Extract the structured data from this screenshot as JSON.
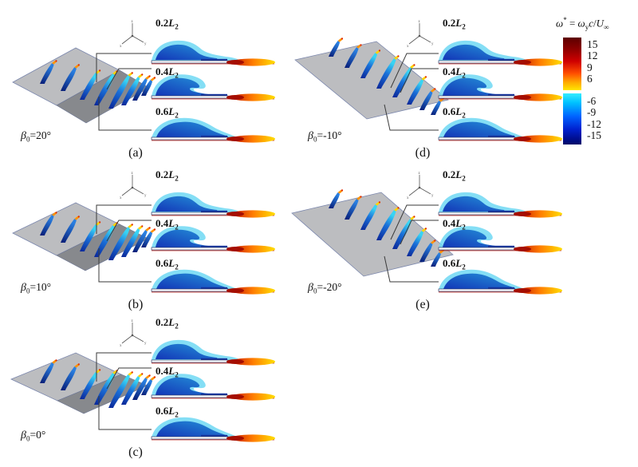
{
  "figure": {
    "background": "#ffffff",
    "panels": [
      {
        "id": "a",
        "letter": "(a)",
        "beta": {
          "sym": "β",
          "sub": "0",
          "val": "=20°"
        },
        "slices": [
          {
            "val": "0.2",
            "sym": "L",
            "sub": "2"
          },
          {
            "val": "0.4",
            "sym": "L",
            "sub": "2"
          },
          {
            "val": "0.6",
            "sym": "L",
            "sub": "2"
          }
        ]
      },
      {
        "id": "b",
        "letter": "(b)",
        "beta": {
          "sym": "β",
          "sub": "0",
          "val": "=10°"
        },
        "slices": [
          {
            "val": "0.2",
            "sym": "L",
            "sub": "2"
          },
          {
            "val": "0.4",
            "sym": "L",
            "sub": "2"
          },
          {
            "val": "0.6",
            "sym": "L",
            "sub": "2"
          }
        ]
      },
      {
        "id": "c",
        "letter": "(c)",
        "beta": {
          "sym": "β",
          "sub": "0",
          "val": "=0°"
        },
        "slices": [
          {
            "val": "0.2",
            "sym": "L",
            "sub": "2"
          },
          {
            "val": "0.4",
            "sym": "L",
            "sub": "2"
          },
          {
            "val": "0.6",
            "sym": "L",
            "sub": "2"
          }
        ]
      },
      {
        "id": "d",
        "letter": "(d)",
        "beta": {
          "sym": "β",
          "sub": "0",
          "val": "=-10°"
        },
        "slices": [
          {
            "val": "0.2",
            "sym": "L",
            "sub": "2"
          },
          {
            "val": "0.4",
            "sym": "L",
            "sub": "2"
          },
          {
            "val": "0.6",
            "sym": "L",
            "sub": "2"
          }
        ]
      },
      {
        "id": "e",
        "letter": "(e)",
        "beta": {
          "sym": "β",
          "sub": "0",
          "val": "=-20°"
        },
        "slices": [
          {
            "val": "0.2",
            "sym": "L",
            "sub": "2"
          },
          {
            "val": "0.4",
            "sym": "L",
            "sub": "2"
          },
          {
            "val": "0.6",
            "sym": "L",
            "sub": "2"
          }
        ]
      }
    ],
    "axis_triad": {
      "x": "x",
      "y": "y",
      "z": "z"
    },
    "colorbar": {
      "title": {
        "omega": "ω",
        "star": "*",
        "equals": "=",
        "omega2": "ω",
        "sub_y": "y",
        "c": "c",
        "slash": "/",
        "u": "U",
        "sub_inf": "∞"
      },
      "positive_ticks": [
        "15",
        "12",
        "9",
        "6"
      ],
      "negative_ticks": [
        "-6",
        "-9",
        "-12",
        "-15"
      ],
      "positive_gradient": [
        "#5c0000",
        "#cf0000",
        "#ff4e00",
        "#ffe600"
      ],
      "negative_gradient": [
        "#35ecff",
        "#0063ff",
        "#000a68"
      ]
    }
  }
}
